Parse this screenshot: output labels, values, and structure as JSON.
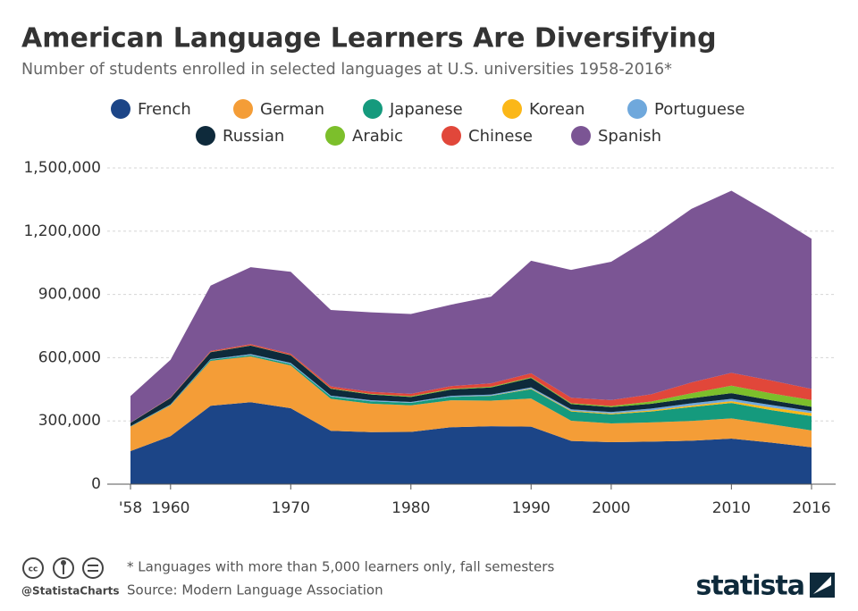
{
  "chart_data": {
    "type": "stacked_area",
    "title": "American Language Learners Are Diversifying",
    "subtitle": "Number of students enrolled in selected languages at U.S. universities 1958-2016*",
    "categories": [
      "'58",
      "1960",
      null,
      null,
      "1970",
      null,
      null,
      "1980",
      null,
      null,
      "1990",
      null,
      "2000",
      null,
      null,
      "2010",
      null,
      "2016"
    ],
    "series": [
      {
        "name": "French",
        "color": "#1c4587",
        "values": [
          157000,
          228000,
          372000,
          389000,
          360000,
          253000,
          247000,
          248000,
          270000,
          275000,
          273000,
          205000,
          199000,
          202000,
          206000,
          216000,
          197000,
          175000
        ]
      },
      {
        "name": "German",
        "color": "#f49d37",
        "values": [
          115000,
          146000,
          213000,
          217000,
          203000,
          152000,
          135000,
          126000,
          128000,
          121000,
          133000,
          96000,
          89000,
          91000,
          94000,
          96000,
          87000,
          80000
        ]
      },
      {
        "name": "Japanese",
        "color": "#159a7d",
        "values": [
          2000,
          2000,
          5000,
          6000,
          7000,
          10000,
          11000,
          11500,
          16000,
          23000,
          45000,
          44000,
          43000,
          52000,
          66000,
          73000,
          67000,
          68000
        ]
      },
      {
        "name": "Korean",
        "color": "#fbb718",
        "values": [
          0,
          0,
          100,
          100,
          100,
          200,
          200,
          400,
          400,
          900,
          2300,
          3300,
          4500,
          5200,
          7100,
          8500,
          12200,
          14000
        ]
      },
      {
        "name": "Portuguese",
        "color": "#6fa8dc",
        "values": [
          1000,
          2000,
          3000,
          5000,
          5000,
          5000,
          5000,
          4000,
          4400,
          5000,
          6000,
          6500,
          6900,
          8400,
          10300,
          11400,
          12400,
          10000
        ]
      },
      {
        "name": "Russian",
        "color": "#0e2a3b",
        "values": [
          16000,
          31000,
          33000,
          40000,
          36000,
          32000,
          27000,
          24000,
          30000,
          34000,
          44000,
          25000,
          23000,
          23000,
          24000,
          27000,
          22000,
          20000
        ]
      },
      {
        "name": "Arabic",
        "color": "#7cbf2b",
        "values": [
          500,
          500,
          900,
          1100,
          1300,
          2000,
          3000,
          3500,
          3400,
          3400,
          3500,
          4400,
          5500,
          10600,
          24000,
          35000,
          33000,
          32000
        ]
      },
      {
        "name": "Chinese",
        "color": "#e1473a",
        "values": [
          600,
          1800,
          5000,
          6000,
          6000,
          10000,
          10000,
          11000,
          13000,
          16000,
          19000,
          26000,
          28000,
          34000,
          51000,
          61000,
          61000,
          53000
        ]
      },
      {
        "name": "Spanish",
        "color": "#7b5594",
        "values": [
          126000,
          179000,
          310000,
          365000,
          389000,
          362000,
          377000,
          379000,
          386000,
          411000,
          534000,
          606000,
          656000,
          746000,
          823000,
          864000,
          790000,
          712000
        ]
      }
    ],
    "ylim": [
      0,
      1500000
    ],
    "yticks": [
      0,
      {
        "value": 300000,
        "label": "300,000"
      },
      {
        "value": 600000,
        "label": "600,000"
      },
      {
        "value": 900000,
        "label": "900,000"
      },
      {
        "value": 1200000,
        "label": "1,200,000"
      },
      {
        "value": 1500000,
        "label": "1,500,000"
      }
    ],
    "grid": true,
    "footnote": "* Languages with more than 5,000 learners only, fall semesters",
    "source": "Source: Modern Language Association",
    "credit": "@StatistaCharts",
    "brand": "statista"
  }
}
